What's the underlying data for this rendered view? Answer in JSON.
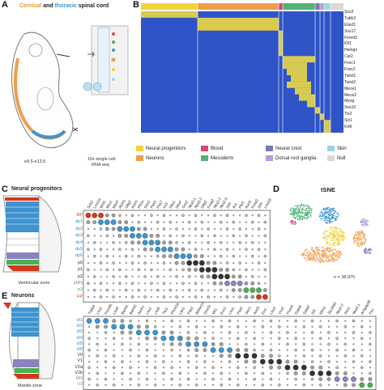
{
  "panelA": {
    "letter": "A",
    "title_part1": "Cervical",
    "title_and": " and ",
    "title_part2": "thoracic",
    "title_part3": " spinal cord",
    "age": "e9.5-e13.5",
    "method": "10x single cell",
    "method2": "RNA seq"
  },
  "panelB": {
    "letter": "B",
    "genes": [
      "Sox2",
      "Tubb3",
      "Elavl3",
      "Sox17",
      "Fermt3",
      "Klf1",
      "Hemgn",
      "Car2",
      "Foxc1",
      "Foxc2",
      "Twist1",
      "Twist2",
      "Meox1",
      "Meox2",
      "Myog",
      "Sox10",
      "Tlx2",
      "Six1",
      "Krt8"
    ],
    "legend": [
      {
        "label": "Neural progenitors",
        "color": "#f0d23a"
      },
      {
        "label": "Blood",
        "color": "#e0407a"
      },
      {
        "label": "Neural crest",
        "color": "#7a79b0"
      },
      {
        "label": "Skin",
        "color": "#9fd3ea"
      },
      {
        "label": "Neurons",
        "color": "#ef9d4a"
      },
      {
        "label": "Mesoderm",
        "color": "#52b274"
      },
      {
        "label": "Dorsal root ganglia",
        "color": "#b59ad6"
      },
      {
        "label": "Null",
        "color": "#d9d9d9"
      }
    ]
  },
  "panelC": {
    "letter": "C",
    "title": "Neural progenitors",
    "zone": "Ventricular zone",
    "rows": [
      {
        "label": "RP",
        "color": "#d13a1f"
      },
      {
        "label": "dp1",
        "color": "#3d93cf"
      },
      {
        "label": "dp2",
        "color": "#3d93cf"
      },
      {
        "label": "dp3",
        "color": "#3d93cf"
      },
      {
        "label": "dp4",
        "color": "#3d93cf"
      },
      {
        "label": "dp5",
        "color": "#3d93cf"
      },
      {
        "label": "dp6",
        "color": "#3d93cf"
      },
      {
        "label": "p0",
        "color": "#333333"
      },
      {
        "label": "p1",
        "color": "#333333"
      },
      {
        "label": "p2",
        "color": "#333333"
      },
      {
        "label": "pMN",
        "color": "#8a83c0"
      },
      {
        "label": "p3",
        "color": "#4caf50"
      },
      {
        "label": "FP",
        "color": "#d13a1f"
      }
    ],
    "genes": [
      "Sox2",
      "Lmx1a",
      "Wnt1",
      "Msx1",
      "Msx2",
      "Atoh1",
      "Olig3",
      "Ascl1",
      "Ptf1a",
      "Gsx1",
      "Pax3",
      "Pax7",
      "Irx3",
      "Dbx1",
      "Dbx2",
      "Gsx2",
      "Nkx6-1",
      "Nkx6-2",
      "Olig2",
      "Foxa2",
      "Nkx2-2",
      "Nkx2-9",
      "Shh",
      "Arx",
      "Ffe2",
      "Ascl1",
      "Foxa2",
      "Shh",
      "Lmx1b"
    ]
  },
  "panelD": {
    "letter": "D",
    "title": "tSNE",
    "count": "n = 38,976"
  },
  "panelE": {
    "letter": "E",
    "title": "Neurons",
    "zone": "Mantle zone",
    "rows": [
      {
        "label": "dI1",
        "color": "#3d93cf"
      },
      {
        "label": "dI2",
        "color": "#3d93cf"
      },
      {
        "label": "dI3",
        "color": "#3d93cf"
      },
      {
        "label": "dI4",
        "color": "#3d93cf"
      },
      {
        "label": "dI5",
        "color": "#3d93cf"
      },
      {
        "label": "dI6",
        "color": "#3d93cf"
      },
      {
        "label": "V0",
        "color": "#333333"
      },
      {
        "label": "V1",
        "color": "#333333"
      },
      {
        "label": "V2a",
        "color": "#333333"
      },
      {
        "label": "V2b",
        "color": "#333333"
      },
      {
        "label": "MN",
        "color": "#8a83c0"
      },
      {
        "label": "V3",
        "color": "#4caf50"
      }
    ],
    "genes": [
      "Tubb3",
      "Lhx2",
      "Pou4f1",
      "Lhx9",
      "Barhl1",
      "Barhl2",
      "Atoh1",
      "Lhx1",
      "Lhx5",
      "Tlx3",
      "Phox2a",
      "Lbx1",
      "Pax2",
      "Bhlhe22",
      "Dmrt3",
      "Wt1",
      "Evx1",
      "Lhx1",
      "Pax2",
      "Sim1",
      "Ascl1",
      "En1",
      "Lhx3",
      "Vsx2",
      "Foxn4",
      "Gata3",
      "Gata2",
      "Isl1",
      "Mnx1",
      "Slc18a3",
      "Nkx2-2",
      "Sim1",
      "Nkx6-1",
      "Arhgap36",
      "Fev"
    ]
  }
}
